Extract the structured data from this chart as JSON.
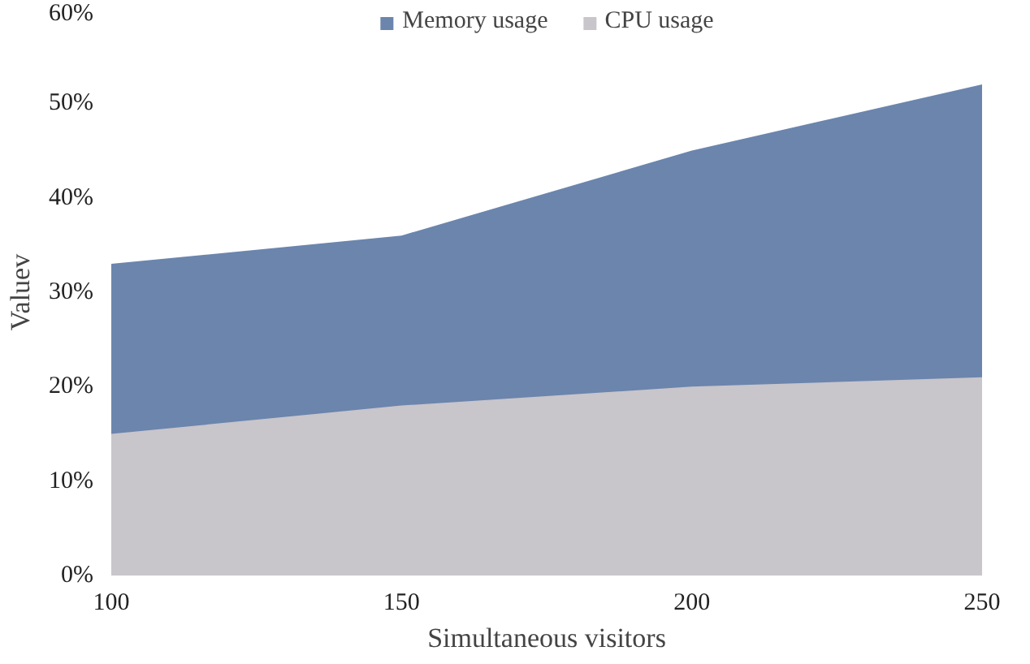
{
  "chart_data": {
    "type": "area",
    "xlabel": "Simultaneous visitors",
    "ylabel": "Valuev",
    "x": [
      100,
      150,
      200,
      250
    ],
    "series": [
      {
        "name": "Memory usage",
        "color": "#6b85ad",
        "values": [
          33,
          36,
          45,
          52
        ]
      },
      {
        "name": "CPU usage",
        "color": "#c8c5cb",
        "values": [
          15,
          18,
          20,
          21
        ]
      }
    ],
    "xlim": [
      100,
      250
    ],
    "xticks": [
      100,
      150,
      200,
      250
    ],
    "ylim": [
      0,
      60
    ],
    "yticks": [
      {
        "value": 0,
        "label": "0%"
      },
      {
        "value": 10,
        "label": "10%"
      },
      {
        "value": 20,
        "label": "20%"
      },
      {
        "value": 30,
        "label": "30%"
      },
      {
        "value": 40,
        "label": "40%"
      },
      {
        "value": 50,
        "label": "50%"
      },
      {
        "value": 60,
        "label": "60%"
      }
    ],
    "grid": false,
    "legend": "top"
  }
}
